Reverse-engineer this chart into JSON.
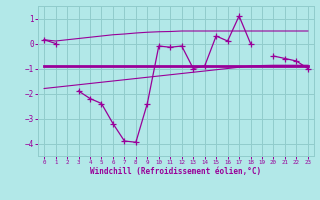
{
  "xlabel": "Windchill (Refroidissement éolien,°C)",
  "background_color": "#b2e8e8",
  "grid_color": "#90cccc",
  "line_color": "#990099",
  "x_data": [
    0,
    1,
    2,
    3,
    4,
    5,
    6,
    7,
    8,
    9,
    10,
    11,
    12,
    13,
    14,
    15,
    16,
    17,
    18,
    19,
    20,
    21,
    22,
    23
  ],
  "y_main": [
    0.15,
    0.0,
    null,
    -1.9,
    -2.2,
    -2.4,
    -3.2,
    -3.9,
    -3.95,
    -2.4,
    -0.1,
    -0.15,
    -0.1,
    -1.0,
    -0.9,
    0.3,
    0.1,
    1.1,
    0.0,
    null,
    -0.5,
    -0.6,
    -0.7,
    -1.0
  ],
  "y_upper": [
    0.15,
    0.1,
    0.15,
    0.2,
    0.25,
    0.3,
    0.35,
    0.38,
    0.42,
    0.45,
    0.47,
    0.48,
    0.5,
    0.5,
    0.5,
    0.5,
    0.5,
    0.5,
    0.5,
    0.5,
    0.5,
    0.5,
    0.5,
    0.5
  ],
  "y_lower": [
    -1.8,
    -1.75,
    -1.7,
    -1.65,
    -1.6,
    -1.55,
    -1.5,
    -1.45,
    -1.4,
    -1.35,
    -1.3,
    -1.25,
    -1.2,
    -1.15,
    -1.1,
    -1.05,
    -1.0,
    -0.95,
    -0.9,
    -0.88,
    -0.87,
    -0.87,
    -0.87,
    -0.87
  ],
  "y_mid": [
    -0.9,
    -0.9,
    -0.9,
    -0.9,
    -0.9,
    -0.9,
    -0.9,
    -0.9,
    -0.9,
    -0.9,
    -0.9,
    -0.9,
    -0.9,
    -0.9,
    -0.9,
    -0.9,
    -0.9,
    -0.9,
    -0.9,
    -0.9,
    -0.9,
    -0.9,
    -0.9,
    -0.9
  ],
  "ylim": [
    -4.5,
    1.5
  ],
  "xlim": [
    -0.5,
    23.5
  ],
  "yticks": [
    -4,
    -3,
    -2,
    -1,
    0,
    1
  ],
  "xticks": [
    0,
    1,
    2,
    3,
    4,
    5,
    6,
    7,
    8,
    9,
    10,
    11,
    12,
    13,
    14,
    15,
    16,
    17,
    18,
    19,
    20,
    21,
    22,
    23
  ]
}
